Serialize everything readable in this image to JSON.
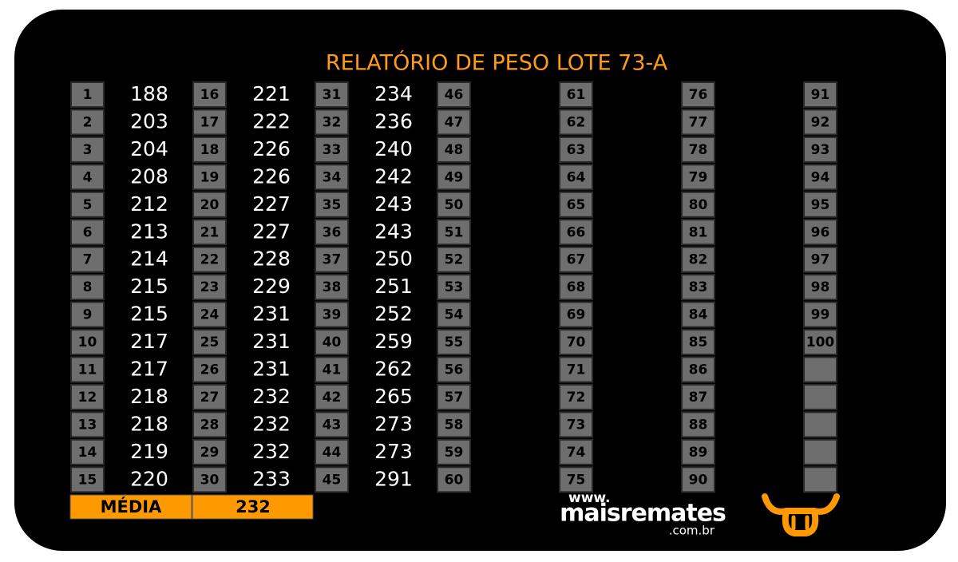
{
  "title": "RELATÓRIO DE PESO LOTE  73-A",
  "groups": [
    {
      "numbers": [
        1,
        2,
        3,
        4,
        5,
        6,
        7,
        8,
        9,
        10,
        11,
        12,
        13,
        14,
        15
      ],
      "weights": [
        188,
        203,
        204,
        208,
        212,
        213,
        214,
        215,
        215,
        217,
        217,
        218,
        218,
        219,
        220
      ]
    },
    {
      "numbers": [
        16,
        17,
        18,
        19,
        20,
        21,
        22,
        23,
        24,
        25,
        26,
        27,
        28,
        29,
        30
      ],
      "weights": [
        221,
        222,
        226,
        226,
        227,
        227,
        228,
        229,
        231,
        231,
        231,
        232,
        232,
        232,
        233
      ]
    },
    {
      "numbers": [
        31,
        32,
        33,
        34,
        35,
        36,
        37,
        38,
        39,
        40,
        41,
        42,
        43,
        44,
        45
      ],
      "weights": [
        234,
        236,
        240,
        242,
        243,
        243,
        250,
        251,
        252,
        259,
        262,
        265,
        273,
        273,
        291
      ]
    },
    {
      "numbers": [
        46,
        47,
        48,
        49,
        50,
        51,
        52,
        53,
        54,
        55,
        56,
        57,
        58,
        59,
        60
      ],
      "weights": []
    },
    {
      "numbers": [
        61,
        62,
        63,
        64,
        65,
        66,
        67,
        68,
        69,
        70,
        71,
        72,
        73,
        74,
        75
      ],
      "weights": []
    },
    {
      "numbers": [
        76,
        77,
        78,
        79,
        80,
        81,
        82,
        83,
        84,
        85,
        86,
        87,
        88,
        89,
        90
      ],
      "weights": []
    },
    {
      "numbers": [
        91,
        92,
        93,
        94,
        95,
        96,
        97,
        98,
        99,
        100
      ],
      "weights": []
    }
  ],
  "average": {
    "label": "MÉDIA",
    "value": "232"
  },
  "logo": {
    "www": "www.",
    "name": "maisremates",
    "domain": ".com.br"
  }
}
